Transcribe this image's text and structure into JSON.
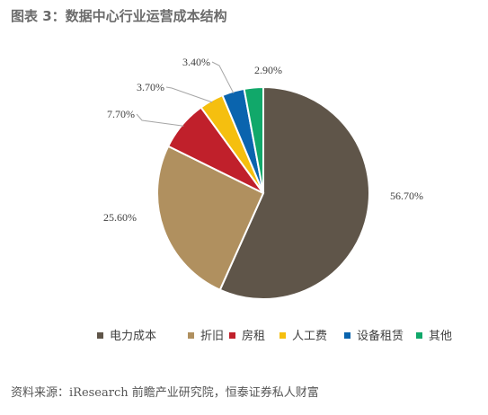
{
  "title": "图表 3：数据中心行业运营成本结构",
  "source": "资料来源：iResearch 前瞻产业研究院，恒泰证券私人财富",
  "chart_data": {
    "type": "pie",
    "slices": [
      {
        "label": "电力成本",
        "value": 56.7,
        "display": "56.70%",
        "color": "#5f5549"
      },
      {
        "label": "折旧",
        "value": 25.6,
        "display": "25.60%",
        "color": "#b0905f"
      },
      {
        "label": "房租",
        "value": 7.7,
        "display": "7.70%",
        "color": "#c0202b"
      },
      {
        "label": "人工费",
        "value": 3.7,
        "display": "3.70%",
        "color": "#f5bf0f"
      },
      {
        "label": "设备租赁",
        "value": 3.4,
        "display": "3.40%",
        "color": "#0a64ae"
      },
      {
        "label": "其他",
        "value": 2.9,
        "display": "2.90%",
        "color": "#11a86a"
      }
    ],
    "start": "top",
    "direction": "clockwise",
    "legend_position": "bottom"
  }
}
